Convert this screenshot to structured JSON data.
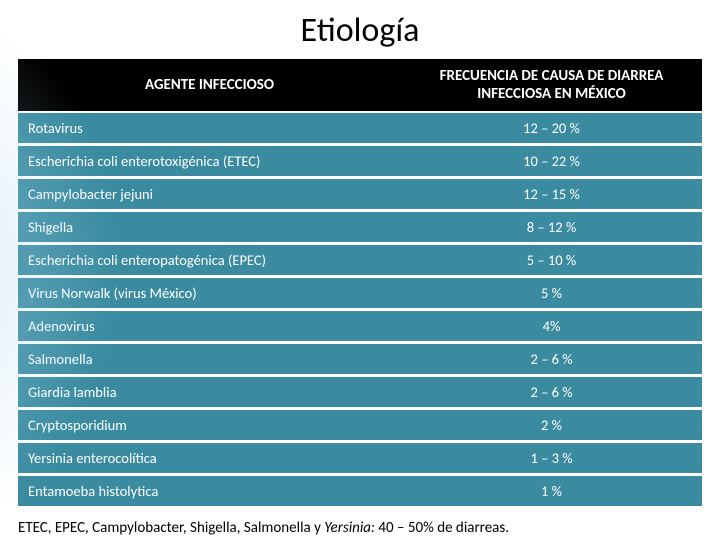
{
  "title": "Etiología",
  "table": {
    "headers": {
      "agent": "AGENTE INFECCIOSO",
      "frequency": "FRECUENCIA DE CAUSA DE DIARREA INFECCIOSA EN MÉXICO"
    },
    "header_bg": "#000000",
    "header_color": "#ffffff",
    "row_bg": "#3a8ba0",
    "row_color": "#ffffff",
    "row_border": "#ffffff",
    "rows": [
      {
        "agent": "Rotavirus",
        "freq": "12 – 20 %"
      },
      {
        "agent": "Escherichia coli enterotoxigénica (ETEC)",
        "freq": "10 – 22 %"
      },
      {
        "agent": "Campylobacter jejuni",
        "freq": "12 – 15 %"
      },
      {
        "agent": "Shigella",
        "freq": "8 – 12 %"
      },
      {
        "agent": "Escherichia coli enteropatogénica (EPEC)",
        "freq": "5 – 10 %"
      },
      {
        "agent": "Virus Norwalk (virus México)",
        "freq": "5 %"
      },
      {
        "agent": "Adenovirus",
        "freq": "4%"
      },
      {
        "agent": "Salmonella",
        "freq": "2 – 6 %"
      },
      {
        "agent": "Giardia lamblia",
        "freq": "2 – 6 %"
      },
      {
        "agent": "Cryptosporidium",
        "freq": "2 %"
      },
      {
        "agent": "Yersinia enterocolítica",
        "freq": "1 – 3 %"
      },
      {
        "agent": "Entamoeba histolytica",
        "freq": "1 %"
      }
    ]
  },
  "footnote": {
    "agents": "ETEC, EPEC,  Campylobacter, Shigella, Salmonella ",
    "and": "y ",
    "last": "Yersinia: ",
    "text": "40 – 50% de diarreas."
  }
}
